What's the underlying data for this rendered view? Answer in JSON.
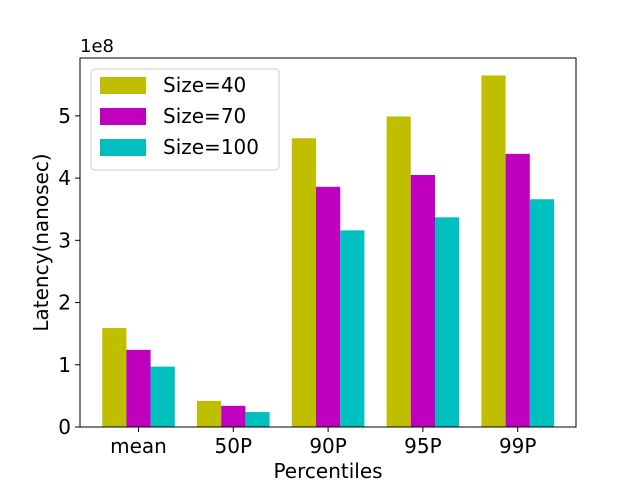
{
  "chart_data": {
    "type": "bar",
    "categories": [
      "mean",
      "50P",
      "90P",
      "95P",
      "99P"
    ],
    "series": [
      {
        "name": "Size=40",
        "color": "#bfbf00",
        "values": [
          1.59,
          0.42,
          4.64,
          4.99,
          5.65
        ]
      },
      {
        "name": "Size=70",
        "color": "#bf00bf",
        "values": [
          1.24,
          0.34,
          3.86,
          4.05,
          4.39
        ]
      },
      {
        "name": "Size=100",
        "color": "#00bfbf",
        "values": [
          0.97,
          0.24,
          3.16,
          3.37,
          3.66
        ]
      }
    ],
    "xlabel": "Percentiles",
    "ylabel": "Latency(nanosec)",
    "y_multiplier": "1e8",
    "ylim": [
      0,
      5.93
    ],
    "yticks": [
      0,
      1,
      2,
      3,
      4,
      5
    ],
    "grid": false,
    "legend": "top-left"
  }
}
